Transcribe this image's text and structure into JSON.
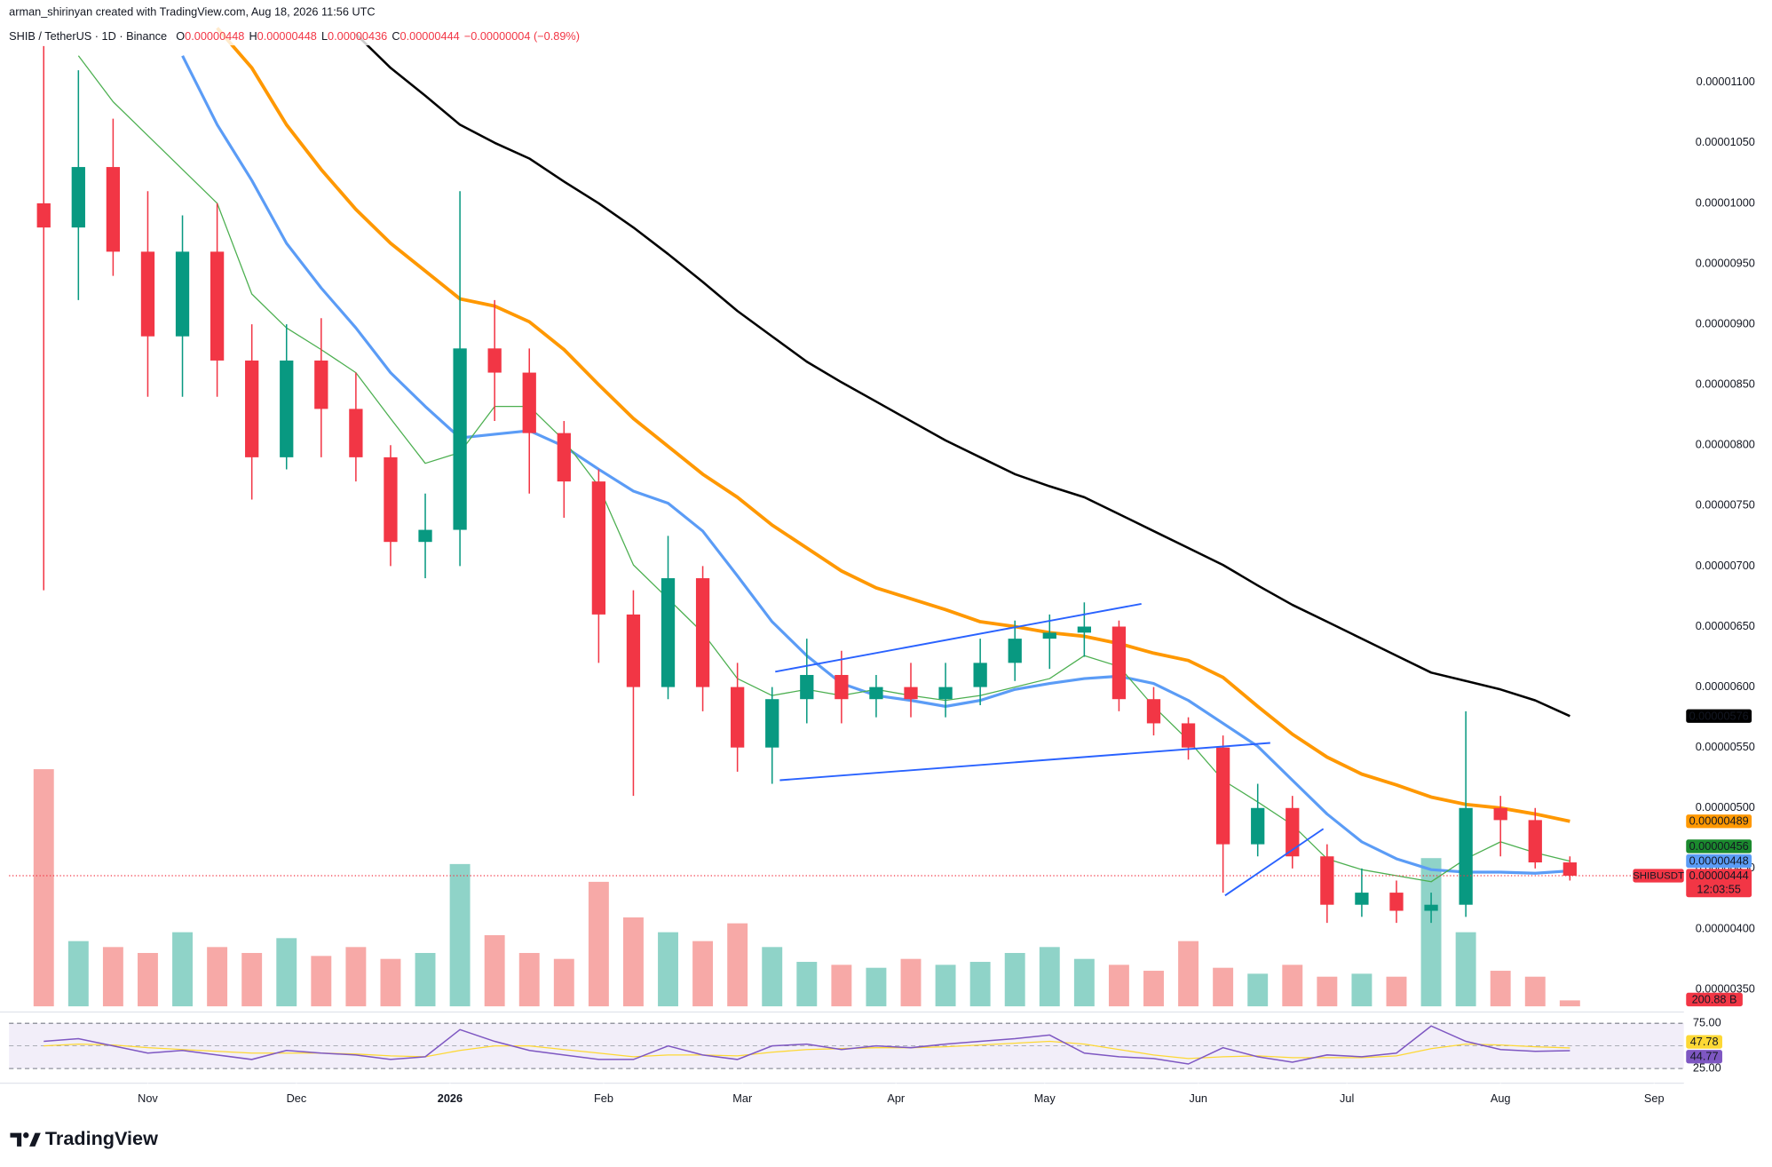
{
  "header": {
    "credit": "arman_shirinyan created with TradingView.com, Aug 18, 2026 11:56 UTC",
    "symbol": "SHIB / TetherUS · 1D · Binance",
    "ohlc": [
      {
        "key": "O",
        "value": "0.00000448"
      },
      {
        "key": "H",
        "value": "0.00000448"
      },
      {
        "key": "L",
        "value": "0.00000436"
      },
      {
        "key": "C",
        "value": "0.00000444"
      }
    ],
    "change": "−0.00000004 (−0.89%)"
  },
  "brand": "TradingView",
  "chart_data": {
    "type": "candlestick",
    "xlim": [
      -28,
      310
    ],
    "xticks": [
      {
        "value": 0,
        "label": "Nov"
      },
      {
        "value": 30,
        "label": "Dec"
      },
      {
        "value": 61,
        "label": "2026"
      },
      {
        "value": 92,
        "label": "Feb"
      },
      {
        "value": 120,
        "label": "Mar"
      },
      {
        "value": 151,
        "label": "Apr"
      },
      {
        "value": 181,
        "label": "May"
      },
      {
        "value": 212,
        "label": "Jun"
      },
      {
        "value": 242,
        "label": "Jul"
      },
      {
        "value": 273,
        "label": "Aug"
      },
      {
        "value": 304,
        "label": "Sep"
      }
    ],
    "ylim": [
      3.36e-06,
      1.168e-05
    ],
    "yticks": [
      {
        "value": 1.1e-05,
        "label": "0.00001100"
      },
      {
        "value": 1.05e-05,
        "label": "0.00001050"
      },
      {
        "value": 1e-05,
        "label": "0.00001000"
      },
      {
        "value": 9.5e-06,
        "label": "0.00000950"
      },
      {
        "value": 9e-06,
        "label": "0.00000900"
      },
      {
        "value": 8.5e-06,
        "label": "0.00000850"
      },
      {
        "value": 8e-06,
        "label": "0.00000800"
      },
      {
        "value": 7.5e-06,
        "label": "0.00000750"
      },
      {
        "value": 7e-06,
        "label": "0.00000700"
      },
      {
        "value": 6.5e-06,
        "label": "0.00000650"
      },
      {
        "value": 6e-06,
        "label": "0.00000600"
      },
      {
        "value": 5.5e-06,
        "label": "0.00000550"
      },
      {
        "value": 5e-06,
        "label": "0.00000500"
      },
      {
        "value": 4.5e-06,
        "label": "0.00000450"
      },
      {
        "value": 4e-06,
        "label": "0.00000400"
      },
      {
        "value": 3.5e-06,
        "label": "0.00000350"
      }
    ],
    "grid": false,
    "up_color": "#089981",
    "down_color": "#f23645",
    "x": [
      -21,
      -14,
      -7,
      0,
      7,
      14,
      21,
      28,
      35,
      42,
      49,
      56,
      63,
      70,
      77,
      84,
      91,
      98,
      105,
      112,
      119,
      126,
      133,
      140,
      147,
      154,
      161,
      168,
      175,
      182,
      189,
      196,
      203,
      210,
      217,
      224,
      231,
      238,
      245,
      252,
      259,
      266,
      273,
      280,
      287
    ],
    "open": [
      1e-05,
      9.8e-06,
      1.03e-05,
      9.6e-06,
      8.9e-06,
      9.6e-06,
      8.7e-06,
      7.9e-06,
      8.7e-06,
      8.3e-06,
      7.9e-06,
      7.2e-06,
      7.3e-06,
      8.8e-06,
      8.6e-06,
      8.1e-06,
      7.7e-06,
      6.6e-06,
      6e-06,
      6.9e-06,
      6e-06,
      5.5e-06,
      5.9e-06,
      6.1e-06,
      5.9e-06,
      6e-06,
      5.9e-06,
      6e-06,
      6.2e-06,
      6.4e-06,
      6.45e-06,
      6.5e-06,
      5.9e-06,
      5.7e-06,
      5.5e-06,
      4.7e-06,
      5e-06,
      4.6e-06,
      4.2e-06,
      4.3e-06,
      4.15e-06,
      4.2e-06,
      5e-06,
      4.9e-06,
      4.55e-06
    ],
    "high": [
      1.13e-05,
      1.11e-05,
      1.07e-05,
      1.01e-05,
      9.9e-06,
      1e-05,
      9e-06,
      9e-06,
      9.05e-06,
      8.6e-06,
      8e-06,
      7.6e-06,
      1.01e-05,
      9.2e-06,
      8.8e-06,
      8.2e-06,
      7.8e-06,
      6.8e-06,
      7.25e-06,
      7e-06,
      6.2e-06,
      6e-06,
      6.4e-06,
      6.3e-06,
      6.1e-06,
      6.2e-06,
      6.2e-06,
      6.4e-06,
      6.55e-06,
      6.6e-06,
      6.7e-06,
      6.55e-06,
      6e-06,
      5.75e-06,
      5.6e-06,
      5.2e-06,
      5.1e-06,
      4.7e-06,
      4.5e-06,
      4.4e-06,
      4.3e-06,
      5.8e-06,
      5.1e-06,
      5e-06,
      4.6e-06
    ],
    "low": [
      6.8e-06,
      9.2e-06,
      9.4e-06,
      8.4e-06,
      8.4e-06,
      8.4e-06,
      7.55e-06,
      7.8e-06,
      7.9e-06,
      7.7e-06,
      7e-06,
      6.9e-06,
      7e-06,
      8.2e-06,
      7.6e-06,
      7.4e-06,
      6.2e-06,
      5.1e-06,
      5.9e-06,
      5.8e-06,
      5.3e-06,
      5.2e-06,
      5.7e-06,
      5.7e-06,
      5.75e-06,
      5.75e-06,
      5.75e-06,
      5.85e-06,
      6.05e-06,
      6.15e-06,
      6.25e-06,
      5.8e-06,
      5.6e-06,
      5.4e-06,
      4.3e-06,
      4.6e-06,
      4.5e-06,
      4.05e-06,
      4.1e-06,
      4.05e-06,
      4.05e-06,
      4.1e-06,
      4.6e-06,
      4.5e-06,
      4.4e-06
    ],
    "close": [
      9.8e-06,
      1.03e-05,
      9.6e-06,
      8.9e-06,
      9.6e-06,
      8.7e-06,
      7.9e-06,
      8.7e-06,
      8.3e-06,
      7.9e-06,
      7.2e-06,
      7.3e-06,
      8.8e-06,
      8.6e-06,
      8.1e-06,
      7.7e-06,
      6.6e-06,
      6e-06,
      6.9e-06,
      6e-06,
      5.5e-06,
      5.9e-06,
      6.1e-06,
      5.9e-06,
      6e-06,
      5.9e-06,
      6e-06,
      6.2e-06,
      6.4e-06,
      6.45e-06,
      6.5e-06,
      5.9e-06,
      5.7e-06,
      5.5e-06,
      4.7e-06,
      5e-06,
      4.6e-06,
      4.2e-06,
      4.3e-06,
      4.15e-06,
      4.2e-06,
      5e-06,
      4.9e-06,
      4.55e-06,
      4.44e-06
    ],
    "series": [
      {
        "color": "#000000",
        "width": 2,
        "values": [
          null,
          null,
          null,
          null,
          null,
          null,
          null,
          null,
          null,
          1.14e-05,
          1.112e-05,
          1.089e-05,
          1.065e-05,
          1.05e-05,
          1.037e-05,
          1.018e-05,
          1e-05,
          9.8e-06,
          9.58e-06,
          9.35e-06,
          9.11e-06,
          8.9e-06,
          8.69e-06,
          8.52e-06,
          8.36e-06,
          8.2e-06,
          8.04e-06,
          7.9e-06,
          7.76e-06,
          7.66e-06,
          7.57e-06,
          7.43e-06,
          7.29e-06,
          7.15e-06,
          7.01e-06,
          6.84e-06,
          6.68e-06,
          6.54e-06,
          6.4e-06,
          6.26e-06,
          6.12e-06,
          6.05e-06,
          5.98e-06,
          5.89e-06,
          5.76e-06
        ]
      },
      {
        "color": "#ff9800",
        "width": 3,
        "values": [
          null,
          null,
          null,
          null,
          null,
          1.145e-05,
          1.112e-05,
          1.065e-05,
          1.028e-05,
          9.95e-06,
          9.67e-06,
          9.44e-06,
          9.21e-06,
          9.15e-06,
          9.02e-06,
          8.79e-06,
          8.5e-06,
          8.22e-06,
          7.99e-06,
          7.76e-06,
          7.57e-06,
          7.34e-06,
          7.15e-06,
          6.96e-06,
          6.82e-06,
          6.73e-06,
          6.64e-06,
          6.54e-06,
          6.5e-06,
          6.45e-06,
          6.42e-06,
          6.36e-06,
          6.28e-06,
          6.22e-06,
          6.08e-06,
          5.84e-06,
          5.61e-06,
          5.42e-06,
          5.28e-06,
          5.19e-06,
          5.09e-06,
          5.03e-06,
          5e-06,
          4.95e-06,
          4.89e-06
        ]
      },
      {
        "color": "#5b9cf6",
        "width": 2.5,
        "values": [
          null,
          null,
          null,
          null,
          1.122e-05,
          1.065e-05,
          1.019e-05,
          9.67e-06,
          9.3e-06,
          8.97e-06,
          8.6e-06,
          8.32e-06,
          8.06e-06,
          8.09e-06,
          8.12e-06,
          7.99e-06,
          7.8e-06,
          7.62e-06,
          7.52e-06,
          7.29e-06,
          6.92e-06,
          6.54e-06,
          6.26e-06,
          6.03e-06,
          5.93e-06,
          5.89e-06,
          5.84e-06,
          5.89e-06,
          5.98e-06,
          6.03e-06,
          6.07e-06,
          6.09e-06,
          6.03e-06,
          5.89e-06,
          5.7e-06,
          5.51e-06,
          5.23e-06,
          4.95e-06,
          4.72e-06,
          4.58e-06,
          4.49e-06,
          4.47e-06,
          4.47e-06,
          4.46e-06,
          4.48e-06
        ]
      },
      {
        "color": "#4caf50",
        "width": 1,
        "values": [
          null,
          1.122e-05,
          1.084e-05,
          1.056e-05,
          1.028e-05,
          1e-05,
          9.25e-06,
          8.97e-06,
          8.79e-06,
          8.6e-06,
          8.22e-06,
          7.85e-06,
          7.94e-06,
          8.32e-06,
          8.32e-06,
          8.04e-06,
          7.66e-06,
          7.01e-06,
          6.73e-06,
          6.45e-06,
          6.07e-06,
          5.93e-06,
          5.98e-06,
          5.93e-06,
          5.98e-06,
          5.93e-06,
          5.89e-06,
          5.93e-06,
          6e-06,
          6.07e-06,
          6.26e-06,
          6.17e-06,
          5.84e-06,
          5.56e-06,
          5.23e-06,
          5.05e-06,
          4.86e-06,
          4.58e-06,
          4.49e-06,
          4.44e-06,
          4.39e-06,
          4.58e-06,
          4.72e-06,
          4.63e-06,
          4.56e-06
        ]
      }
    ],
    "price_labels": [
      {
        "value": 5.76e-06,
        "label": "0.00000576",
        "color": "#000000"
      },
      {
        "value": 4.89e-06,
        "label": "0.00000489",
        "color": "#ff9800"
      },
      {
        "value": 4.56e-06,
        "label": "0.00000456",
        "color": "#1b8a2e"
      },
      {
        "value": 4.48e-06,
        "label": "0.00000448",
        "color": "#5b9cf6"
      }
    ],
    "last_price": {
      "value": 4.44e-06,
      "label": "0.00000444",
      "symbol": "SHIBUSDT",
      "countdown": "12:03:55",
      "color": "#f23645"
    },
    "volume": [
      8000,
      2200,
      2000,
      1800,
      2500,
      2000,
      1800,
      2300,
      1700,
      2000,
      1600,
      1800,
      4800,
      2400,
      1800,
      1600,
      4200,
      3000,
      2500,
      2200,
      2800,
      2000,
      1500,
      1400,
      1300,
      1600,
      1400,
      1500,
      1800,
      2000,
      1600,
      1400,
      1200,
      2200,
      1300,
      1100,
      1400,
      1000,
      1100,
      1000,
      5000,
      2500,
      1200,
      1000,
      200.88
    ],
    "volume_lim": [
      0,
      8200
    ],
    "volume_label": {
      "value": 200.88,
      "label": "200.88 B"
    },
    "rsi": {
      "ylim": [
        8.75,
        87.5
      ],
      "yticks": [
        {
          "value": 75,
          "label": "75.00"
        },
        {
          "value": 25,
          "label": "25.00"
        }
      ],
      "mid": 50,
      "color": "#7e57c2",
      "ma_color": "#fdd835",
      "values": [
        55,
        58,
        50,
        42,
        45,
        40,
        35,
        45,
        42,
        40,
        35,
        38,
        68,
        55,
        45,
        40,
        35,
        35,
        50,
        40,
        35,
        50,
        52,
        46,
        50,
        48,
        52,
        55,
        58,
        62,
        42,
        38,
        36,
        30,
        48,
        38,
        32,
        40,
        38,
        42,
        72,
        55,
        46,
        44,
        44.77
      ],
      "ma": [
        50,
        52,
        51,
        48,
        46,
        44,
        42,
        42,
        42,
        41,
        39,
        38,
        45,
        50,
        50,
        46,
        42,
        38,
        40,
        40,
        39,
        43,
        46,
        47,
        48,
        48,
        49,
        51,
        53,
        55,
        52,
        46,
        40,
        36,
        38,
        39,
        37,
        37,
        37,
        39,
        47,
        52,
        51,
        49,
        47.78
      ]
    }
  }
}
